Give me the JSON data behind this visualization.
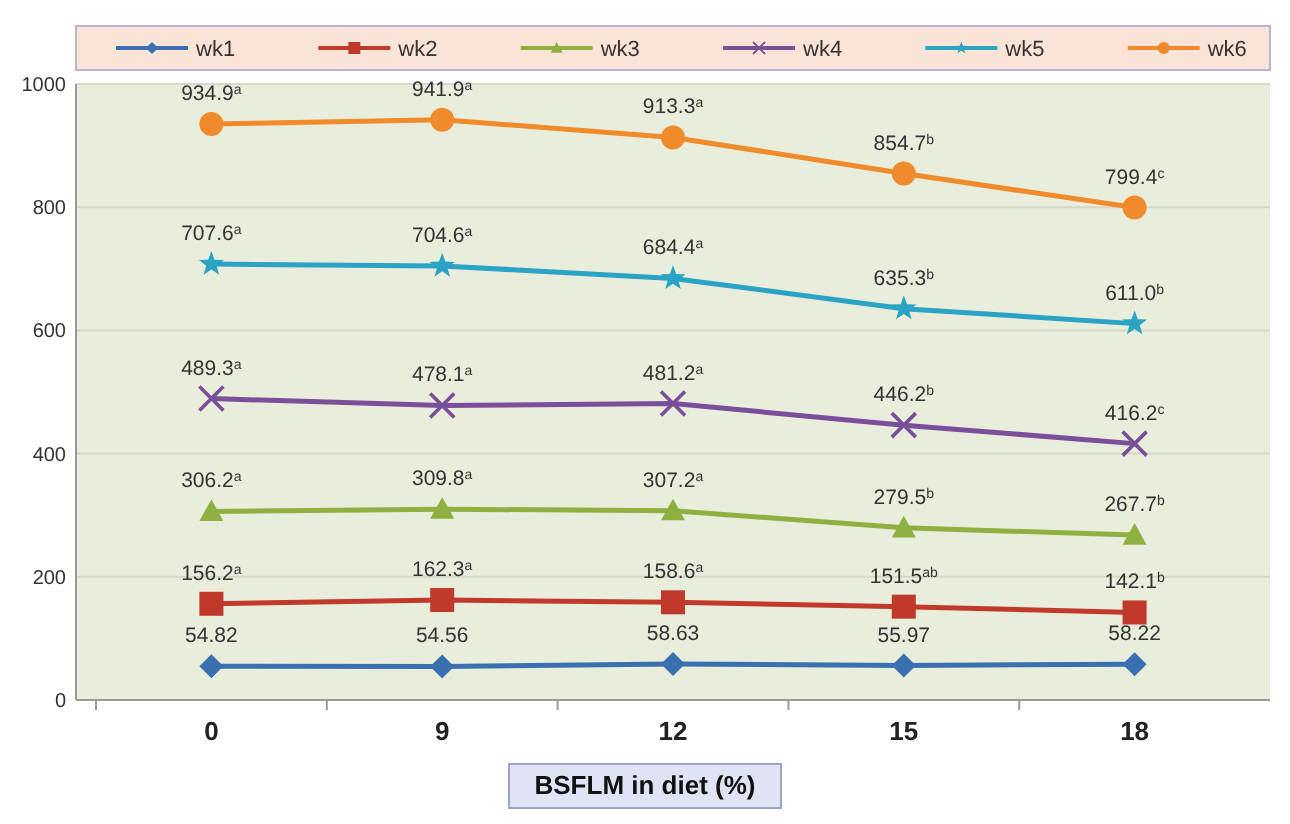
{
  "chart_data": {
    "type": "line",
    "xlabel": "BSFLM in diet (%)",
    "categories": [
      "0",
      "9",
      "12",
      "15",
      "18"
    ],
    "series": [
      {
        "name": "wk1",
        "color": "#3a6fb0",
        "marker": "diamond",
        "values": [
          54.82,
          54.56,
          58.63,
          55.97,
          58.22
        ],
        "value_labels": [
          "54.82",
          "54.56",
          "58.63",
          "55.97",
          "58.22"
        ]
      },
      {
        "name": "wk2",
        "color": "#c0392b",
        "marker": "square",
        "values": [
          156.2,
          162.3,
          158.6,
          151.5,
          142.1
        ],
        "value_labels": [
          "156.2$^{a}$",
          "162.3$^{a}$",
          "158.6$^{a}$",
          "151.5$^{ab}$",
          "142.1$^{b}$"
        ]
      },
      {
        "name": "wk3",
        "color": "#8db040",
        "marker": "triangle",
        "values": [
          306.2,
          309.8,
          307.2,
          279.5,
          267.7
        ],
        "value_labels": [
          "306.2$^{a}$",
          "309.8$^{a}$",
          "307.2$^{a}$",
          "279.5$^{b}$",
          "267.7$^{b}$"
        ]
      },
      {
        "name": "wk4",
        "color": "#7a4f9a",
        "marker": "cross",
        "values": [
          489.3,
          478.1,
          481.2,
          446.2,
          416.2
        ],
        "value_labels": [
          "489.3$^{a}$",
          "478.1$^{a}$",
          "481.2$^{a}$",
          "446.2$^{b}$",
          "416.2$^{c}$"
        ]
      },
      {
        "name": "wk5",
        "color": "#2aa3c4",
        "marker": "star",
        "values": [
          707.6,
          704.6,
          684.4,
          635.3,
          611.0
        ],
        "value_labels": [
          "707.6$^{a}$",
          "704.6$^{a}$",
          "684.4$^{a}$",
          "635.3$^{b}$",
          "611.0$^{b}$"
        ]
      },
      {
        "name": "wk6",
        "color": "#f08a2a",
        "marker": "circle",
        "values": [
          934.9,
          941.9,
          913.3,
          854.7,
          799.4
        ],
        "value_labels": [
          "934.9$^{a}$",
          "941.9$^{a}$",
          "913.3$^{a}$",
          "854.7$^{b}$",
          "799.4$^{c}$"
        ]
      }
    ],
    "ylim": [
      0,
      1000
    ],
    "yticks": [
      0,
      200,
      400,
      600,
      800,
      1000
    ],
    "grid": "y",
    "legend": "top"
  }
}
